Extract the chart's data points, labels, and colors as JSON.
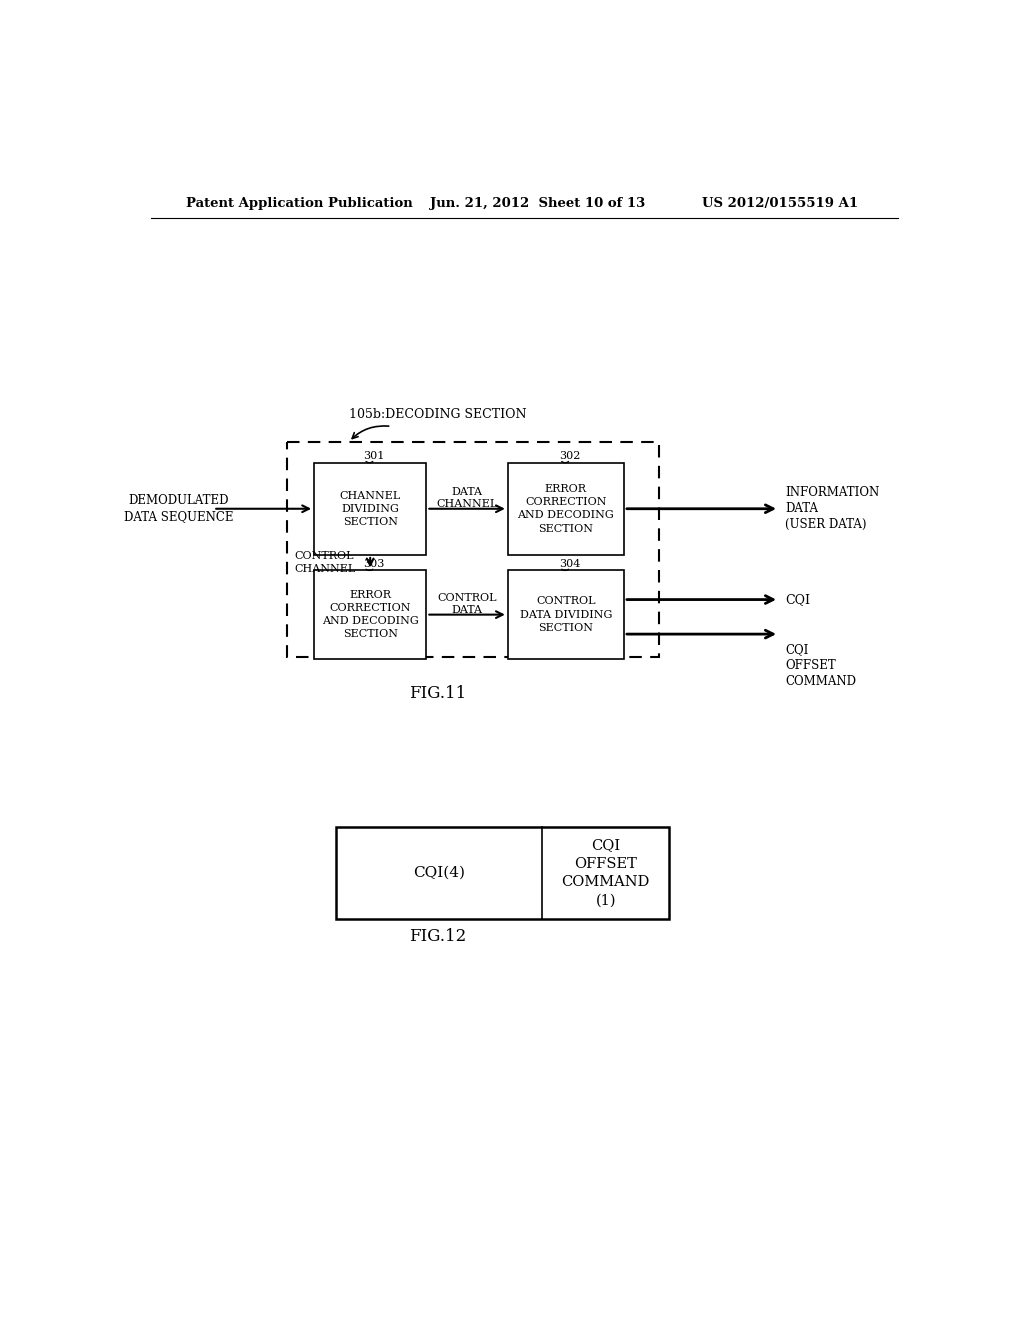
{
  "bg_color": "#ffffff",
  "header_left": "Patent Application Publication",
  "header_center": "Jun. 21, 2012  Sheet 10 of 13",
  "header_right": "US 2012/0155519 A1",
  "fig11_label": "FIG.11",
  "fig12_label": "FIG.12",
  "decoding_section_label": "105b:DECODING SECTION",
  "box301_label": "CHANNEL\nDIVIDING\nSECTION",
  "box302_label": "ERROR\nCORRECTION\nAND DECODING\nSECTION",
  "box303_label": "ERROR\nCORRECTION\nAND DECODING\nSECTION",
  "box304_label": "CONTROL\nDATA DIVIDING\nSECTION",
  "label_301": "301",
  "label_302": "302",
  "label_303": "303",
  "label_304": "304",
  "input_label": "DEMODULATED\nDATA SEQUENCE",
  "data_channel_label": "DATA\nCHANNEL",
  "control_channel_label": "CONTROL\nCHANNEL",
  "control_data_label": "CONTROL\nDATA",
  "output_info_label": "INFORMATION\nDATA\n(USER DATA)",
  "output_cqi_label": "CQI",
  "output_cqi_offset_label": "CQI\nOFFSET\nCOMMAND",
  "fig12_left_label": "CQI(4)",
  "fig12_right_label": "CQI\nOFFSET\nCOMMAND\n(1)"
}
